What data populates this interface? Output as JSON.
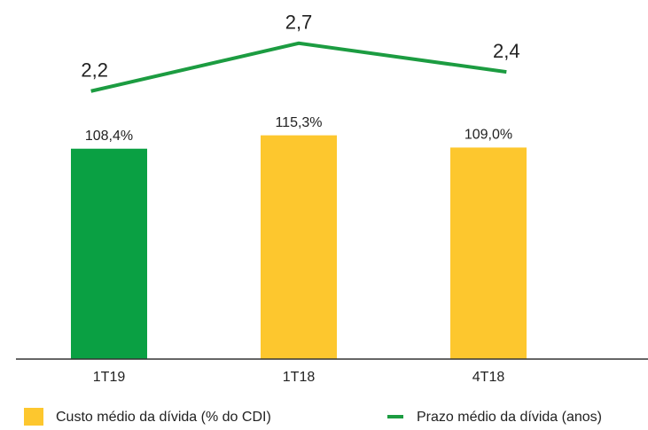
{
  "chart_data": {
    "type": "bar_line",
    "categories": [
      "1T19",
      "1T18",
      "4T18"
    ],
    "series": [
      {
        "name": "Custo médio da dívida (% do CDI)",
        "type": "bar",
        "color": "#fdc72e",
        "colors": [
          "#0aa043",
          "#fdc72e",
          "#fdc72e"
        ],
        "values": [
          108.4,
          115.3,
          109.0
        ],
        "value_labels": [
          "108,4%",
          "115,3%",
          "109,0%"
        ]
      },
      {
        "name": "Prazo médio da dívida (anos)",
        "type": "line",
        "axis": "y2",
        "color": "#1c9c41",
        "values": [
          2.2,
          2.7,
          2.4
        ],
        "value_labels": [
          "2,2",
          "2,7",
          "2,4"
        ]
      }
    ],
    "ylim": [
      0,
      180
    ],
    "y2lim": [
      -0.6,
      3.05
    ]
  }
}
